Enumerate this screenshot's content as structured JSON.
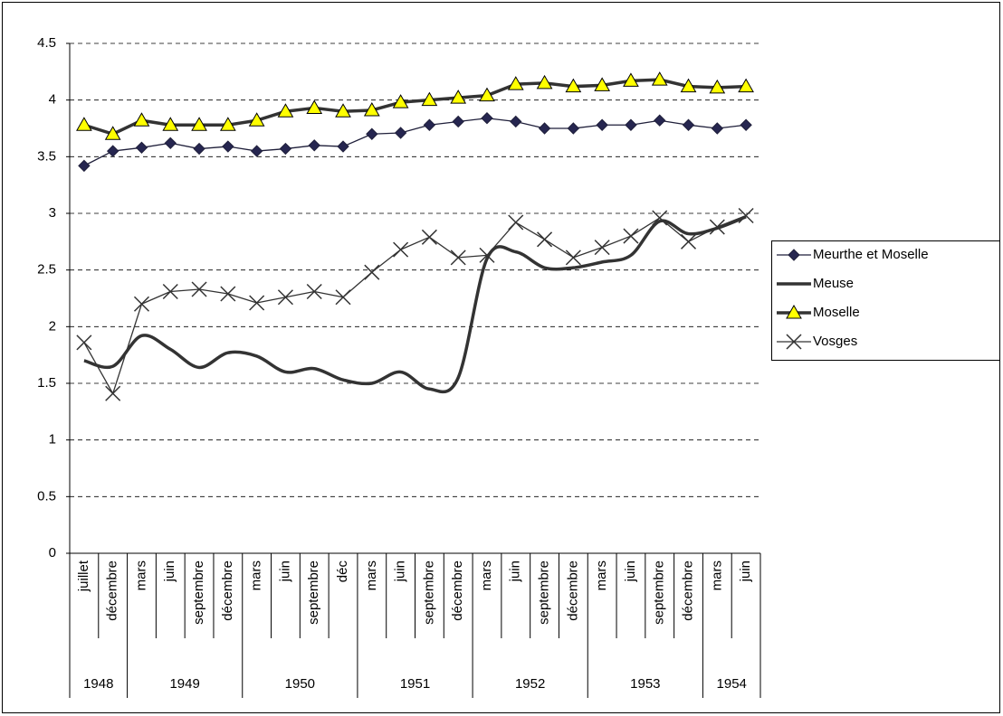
{
  "chart_data": {
    "type": "line",
    "categories": [
      "juillet",
      "décembre",
      "mars",
      "juin",
      "septembre",
      "décembre",
      "mars",
      "juin",
      "septembre",
      "déc",
      "mars",
      "juin",
      "septembre",
      "décembre",
      "mars",
      "juin",
      "septembre",
      "décembre",
      "mars",
      "juin",
      "septembre",
      "décembre",
      "mars",
      "juin"
    ],
    "x_groups": [
      {
        "label": "1948",
        "count": 2
      },
      {
        "label": "1949",
        "count": 4
      },
      {
        "label": "1950",
        "count": 4
      },
      {
        "label": "1951",
        "count": 4
      },
      {
        "label": "1952",
        "count": 4
      },
      {
        "label": "1953",
        "count": 4
      },
      {
        "label": "1954",
        "count": 2
      }
    ],
    "ylim": [
      0,
      4.5
    ],
    "yticks": [
      0,
      0.5,
      1,
      1.5,
      2,
      2.5,
      3,
      3.5,
      4,
      4.5
    ],
    "grid": true,
    "legend": "right",
    "series": [
      {
        "name": "Meurthe et Moselle",
        "color": "#1f1f3a",
        "marker": "diamond",
        "line_style": "thin",
        "marker_fill": "#262650",
        "values": [
          3.42,
          3.55,
          3.58,
          3.62,
          3.57,
          3.59,
          3.55,
          3.57,
          3.6,
          3.59,
          3.7,
          3.71,
          3.78,
          3.81,
          3.84,
          3.81,
          3.75,
          3.75,
          3.78,
          3.78,
          3.82,
          3.78,
          3.75,
          3.78
        ]
      },
      {
        "name": "Meuse",
        "color": "#333333",
        "marker": "none",
        "line_style": "thick",
        "smooth": true,
        "values": [
          1.7,
          1.65,
          1.92,
          1.8,
          1.64,
          1.77,
          1.74,
          1.6,
          1.63,
          1.53,
          1.5,
          1.6,
          1.45,
          1.55,
          2.6,
          2.66,
          2.52,
          2.52,
          2.57,
          2.63,
          2.93,
          2.82,
          2.87,
          2.97
        ]
      },
      {
        "name": "Moselle",
        "color": "#333333",
        "marker": "triangle",
        "line_style": "thick",
        "marker_fill": "#ffff00",
        "values": [
          3.78,
          3.7,
          3.82,
          3.78,
          3.78,
          3.78,
          3.82,
          3.9,
          3.93,
          3.9,
          3.91,
          3.98,
          4.0,
          4.02,
          4.04,
          4.14,
          4.15,
          4.12,
          4.13,
          4.17,
          4.18,
          4.12,
          4.11,
          4.12
        ]
      },
      {
        "name": "Vosges",
        "color": "#333333",
        "marker": "x",
        "line_style": "thin",
        "values": [
          1.86,
          1.41,
          2.2,
          2.31,
          2.33,
          2.29,
          2.21,
          2.26,
          2.31,
          2.26,
          2.48,
          2.68,
          2.79,
          2.61,
          2.63,
          2.92,
          2.77,
          2.61,
          2.7,
          2.8,
          2.96,
          2.75,
          2.88,
          2.98
        ]
      }
    ]
  }
}
